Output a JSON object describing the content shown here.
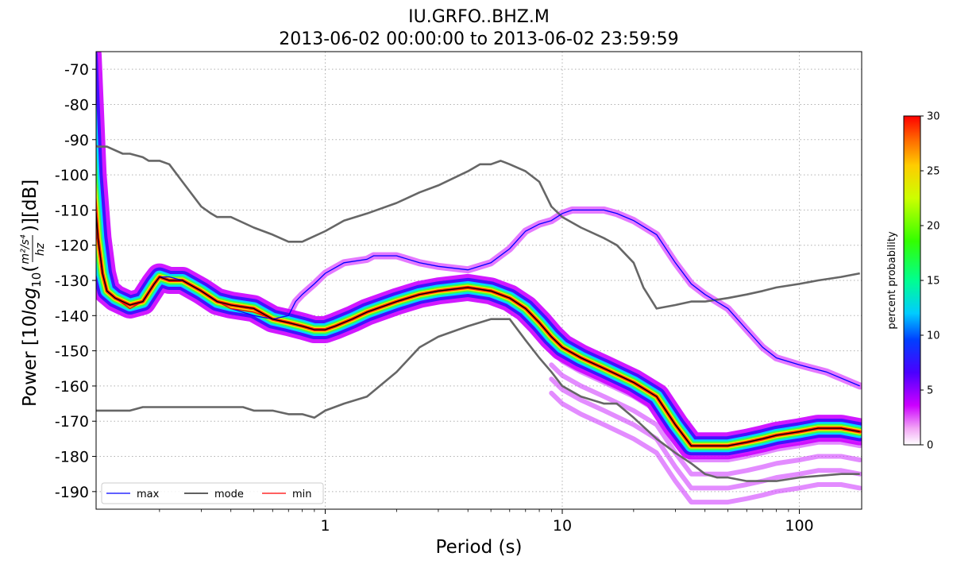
{
  "chart_data": {
    "type": "line",
    "title_line1": "IU.GRFO..BHZ.M",
    "title_line2": "2013-06-02 00:00:00 to 2013-06-02 23:59:59",
    "xlabel": "Period (s)",
    "xscale": "log",
    "xlim": [
      0.1,
      180
    ],
    "xticks": [
      1,
      10,
      100
    ],
    "xtick_labels": [
      "1",
      "10",
      "100"
    ],
    "ylim": [
      -195,
      -65
    ],
    "yticks": [
      -70,
      -80,
      -90,
      -100,
      -110,
      -120,
      -130,
      -140,
      -150,
      -160,
      -170,
      -180,
      -190
    ],
    "ylabel_main": "Power [10",
    "ylabel_log": "log",
    "ylabel_sub": "10",
    "ylabel_num": "m²/s⁴",
    "ylabel_den": "hz",
    "ylabel_unit": ")][dB]",
    "grid": true,
    "legend_position": "lower-left",
    "colorbar": {
      "label": "percent probability",
      "range": [
        0,
        30
      ],
      "ticks": [
        0,
        5,
        10,
        15,
        20,
        25,
        30
      ]
    },
    "colors": {
      "noise_model": "#666666",
      "max": "#0000ff",
      "mode": "#000000",
      "min": "#ff0000",
      "grid": "#b0b0b0"
    },
    "series": [
      {
        "name": "max",
        "color": "#0000ff",
        "points": [
          [
            0.1,
            -66
          ],
          [
            0.105,
            -100
          ],
          [
            0.11,
            -118
          ],
          [
            0.115,
            -128
          ],
          [
            0.12,
            -133
          ],
          [
            0.13,
            -135
          ],
          [
            0.15,
            -138
          ],
          [
            0.17,
            -136
          ],
          [
            0.19,
            -131
          ],
          [
            0.2,
            -129
          ],
          [
            0.22,
            -129
          ],
          [
            0.25,
            -130
          ],
          [
            0.3,
            -133
          ],
          [
            0.35,
            -136
          ],
          [
            0.4,
            -138
          ],
          [
            0.5,
            -140
          ],
          [
            0.6,
            -141
          ],
          [
            0.7,
            -140
          ],
          [
            0.75,
            -136
          ],
          [
            0.8,
            -134
          ],
          [
            0.9,
            -131
          ],
          [
            1.0,
            -128
          ],
          [
            1.2,
            -125
          ],
          [
            1.5,
            -124
          ],
          [
            1.6,
            -123
          ],
          [
            2.0,
            -123
          ],
          [
            2.5,
            -125
          ],
          [
            3.0,
            -126
          ],
          [
            4.0,
            -127
          ],
          [
            5.0,
            -125
          ],
          [
            6.0,
            -121
          ],
          [
            7.0,
            -116
          ],
          [
            8.0,
            -114
          ],
          [
            9.0,
            -113
          ],
          [
            10.0,
            -111
          ],
          [
            11.0,
            -110
          ],
          [
            15.0,
            -110
          ],
          [
            17.0,
            -111
          ],
          [
            20.0,
            -113
          ],
          [
            25.0,
            -117
          ],
          [
            30.0,
            -125
          ],
          [
            35.0,
            -131
          ],
          [
            40.0,
            -134
          ],
          [
            50.0,
            -138
          ],
          [
            60.0,
            -144
          ],
          [
            70.0,
            -149
          ],
          [
            80.0,
            -152
          ],
          [
            100.0,
            -154
          ],
          [
            130.0,
            -156
          ],
          [
            180.0,
            -160
          ]
        ]
      },
      {
        "name": "mode",
        "color": "#000000",
        "points": [
          [
            0.1,
            -66
          ],
          [
            0.105,
            -100
          ],
          [
            0.11,
            -118
          ],
          [
            0.115,
            -128
          ],
          [
            0.12,
            -133
          ],
          [
            0.13,
            -135
          ],
          [
            0.15,
            -137
          ],
          [
            0.17,
            -136
          ],
          [
            0.19,
            -131
          ],
          [
            0.2,
            -129
          ],
          [
            0.22,
            -130
          ],
          [
            0.25,
            -130
          ],
          [
            0.3,
            -133
          ],
          [
            0.35,
            -136
          ],
          [
            0.4,
            -137
          ],
          [
            0.5,
            -138
          ],
          [
            0.6,
            -141
          ],
          [
            0.7,
            -142
          ],
          [
            0.8,
            -143
          ],
          [
            0.9,
            -144
          ],
          [
            1.0,
            -144
          ],
          [
            1.1,
            -143
          ],
          [
            1.3,
            -141
          ],
          [
            1.5,
            -139
          ],
          [
            2.0,
            -136
          ],
          [
            2.5,
            -134
          ],
          [
            3.0,
            -133
          ],
          [
            4.0,
            -132
          ],
          [
            5.0,
            -133
          ],
          [
            6.0,
            -135
          ],
          [
            7.0,
            -138
          ],
          [
            8.0,
            -142
          ],
          [
            9.0,
            -146
          ],
          [
            10.0,
            -149
          ],
          [
            12.0,
            -152
          ],
          [
            15.0,
            -155
          ],
          [
            20.0,
            -159
          ],
          [
            25.0,
            -163
          ],
          [
            30.0,
            -171
          ],
          [
            35.0,
            -177
          ],
          [
            40.0,
            -177
          ],
          [
            50.0,
            -177
          ],
          [
            60.0,
            -176
          ],
          [
            70.0,
            -175
          ],
          [
            80.0,
            -174
          ],
          [
            100.0,
            -173
          ],
          [
            120.0,
            -172
          ],
          [
            150.0,
            -172
          ],
          [
            180.0,
            -173
          ]
        ]
      },
      {
        "name": "min",
        "color": "#ff0000",
        "points": [
          [
            0.1,
            -66
          ],
          [
            0.105,
            -100
          ],
          [
            0.11,
            -118
          ],
          [
            0.115,
            -128
          ],
          [
            0.12,
            -133
          ],
          [
            0.13,
            -135
          ],
          [
            0.15,
            -138
          ],
          [
            0.17,
            -136
          ],
          [
            0.19,
            -131
          ],
          [
            0.2,
            -129
          ],
          [
            0.22,
            -130
          ],
          [
            0.25,
            -130
          ],
          [
            0.3,
            -133
          ],
          [
            0.35,
            -136
          ],
          [
            0.4,
            -138
          ],
          [
            0.5,
            -139
          ],
          [
            0.6,
            -141
          ],
          [
            0.7,
            -142
          ],
          [
            0.8,
            -143
          ],
          [
            0.9,
            -144
          ],
          [
            1.0,
            -144
          ],
          [
            1.1,
            -143
          ],
          [
            1.3,
            -141
          ],
          [
            1.5,
            -139
          ],
          [
            2.0,
            -136
          ],
          [
            2.5,
            -134
          ],
          [
            3.0,
            -133
          ],
          [
            4.0,
            -132
          ],
          [
            5.0,
            -133
          ],
          [
            6.0,
            -135
          ],
          [
            7.0,
            -138
          ],
          [
            8.0,
            -142
          ],
          [
            9.0,
            -146
          ],
          [
            10.0,
            -149
          ],
          [
            12.0,
            -152
          ],
          [
            15.0,
            -155
          ],
          [
            20.0,
            -159
          ],
          [
            25.0,
            -163
          ],
          [
            30.0,
            -171
          ],
          [
            35.0,
            -177
          ],
          [
            40.0,
            -177
          ],
          [
            50.0,
            -177
          ],
          [
            60.0,
            -176
          ],
          [
            70.0,
            -175
          ],
          [
            80.0,
            -174
          ],
          [
            100.0,
            -173
          ],
          [
            120.0,
            -172
          ],
          [
            150.0,
            -172
          ],
          [
            180.0,
            -173
          ]
        ]
      }
    ],
    "noise_models": [
      {
        "points": [
          [
            0.1,
            -91
          ],
          [
            0.11,
            -92
          ],
          [
            0.12,
            -92
          ],
          [
            0.14,
            -94
          ],
          [
            0.15,
            -94
          ],
          [
            0.17,
            -95
          ],
          [
            0.18,
            -96
          ],
          [
            0.2,
            -96
          ],
          [
            0.22,
            -97
          ],
          [
            0.25,
            -102
          ],
          [
            0.3,
            -109
          ],
          [
            0.33,
            -111
          ],
          [
            0.35,
            -112
          ],
          [
            0.4,
            -112
          ],
          [
            0.5,
            -115
          ],
          [
            0.6,
            -117
          ],
          [
            0.7,
            -119
          ],
          [
            0.8,
            -119
          ],
          [
            1.0,
            -116
          ],
          [
            1.2,
            -113
          ],
          [
            1.5,
            -111
          ],
          [
            2.0,
            -108
          ],
          [
            2.5,
            -105
          ],
          [
            3.0,
            -103
          ],
          [
            4.0,
            -99
          ],
          [
            4.5,
            -97
          ],
          [
            5.0,
            -97
          ],
          [
            5.5,
            -96
          ],
          [
            6.0,
            -97
          ],
          [
            7.0,
            -99
          ],
          [
            8.0,
            -102
          ],
          [
            9.0,
            -109
          ],
          [
            10.0,
            -112
          ],
          [
            12.0,
            -115
          ],
          [
            15.0,
            -118
          ],
          [
            17.0,
            -120
          ],
          [
            20.0,
            -125
          ],
          [
            22.0,
            -132
          ],
          [
            25.0,
            -138
          ],
          [
            30.0,
            -137
          ],
          [
            35.0,
            -136
          ],
          [
            40.0,
            -136
          ],
          [
            50.0,
            -135
          ],
          [
            60.0,
            -134
          ],
          [
            70.0,
            -133
          ],
          [
            80.0,
            -132
          ],
          [
            100.0,
            -131
          ],
          [
            120.0,
            -130
          ],
          [
            150.0,
            -129
          ],
          [
            180.0,
            -128
          ]
        ]
      },
      {
        "points": [
          [
            0.1,
            -167
          ],
          [
            0.13,
            -167
          ],
          [
            0.15,
            -167
          ],
          [
            0.17,
            -166
          ],
          [
            0.2,
            -166
          ],
          [
            0.3,
            -166
          ],
          [
            0.4,
            -166
          ],
          [
            0.45,
            -166
          ],
          [
            0.5,
            -167
          ],
          [
            0.6,
            -167
          ],
          [
            0.7,
            -168
          ],
          [
            0.8,
            -168
          ],
          [
            0.9,
            -169
          ],
          [
            1.0,
            -167
          ],
          [
            1.2,
            -165
          ],
          [
            1.5,
            -163
          ],
          [
            2.0,
            -156
          ],
          [
            2.5,
            -149
          ],
          [
            3.0,
            -146
          ],
          [
            4.0,
            -143
          ],
          [
            5.0,
            -141
          ],
          [
            6.0,
            -141
          ],
          [
            7.0,
            -147
          ],
          [
            8.0,
            -152
          ],
          [
            9.0,
            -156
          ],
          [
            10.0,
            -160
          ],
          [
            12.0,
            -163
          ],
          [
            15.0,
            -165
          ],
          [
            17.0,
            -165
          ],
          [
            20.0,
            -169
          ],
          [
            25.0,
            -175
          ],
          [
            30.0,
            -179
          ],
          [
            35.0,
            -182
          ],
          [
            40.0,
            -185
          ],
          [
            45.0,
            -186
          ],
          [
            50.0,
            -186
          ],
          [
            60.0,
            -187
          ],
          [
            80.0,
            -187
          ],
          [
            100.0,
            -186
          ],
          [
            150.0,
            -185
          ],
          [
            180.0,
            -185
          ]
        ]
      }
    ],
    "legend": [
      "max",
      "mode",
      "min"
    ]
  }
}
